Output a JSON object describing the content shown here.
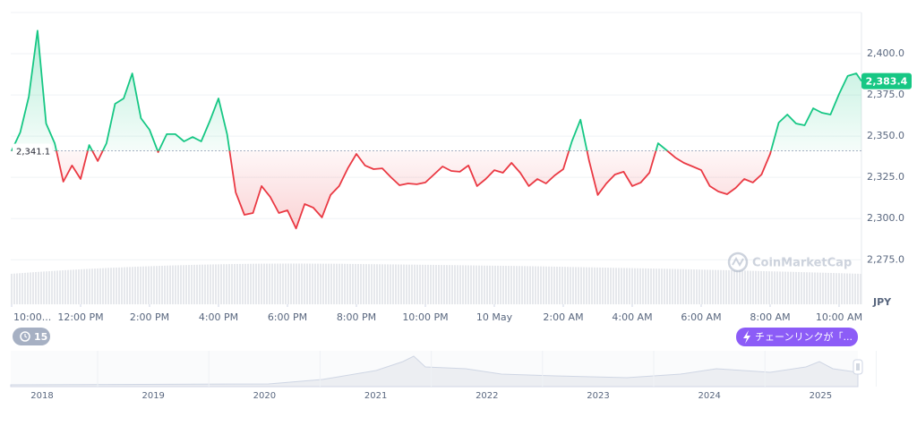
{
  "chart_data": {
    "type": "line",
    "x": [
      0,
      0.25,
      0.5,
      0.75,
      1,
      1.25,
      1.5,
      1.75,
      2,
      2.25,
      2.5,
      2.75,
      3,
      3.25,
      3.5,
      3.75,
      4,
      4.25,
      4.5,
      4.75,
      5,
      5.25,
      5.5,
      5.75,
      6,
      6.25,
      6.5,
      6.75,
      7,
      7.25,
      7.5,
      7.75,
      8,
      8.25,
      8.5,
      8.75,
      9,
      9.25,
      9.5,
      9.75,
      10,
      10.25,
      10.5,
      10.75,
      11,
      11.25,
      11.5,
      11.75,
      12,
      12.25,
      12.5,
      12.75,
      13,
      13.25,
      13.5,
      13.75,
      14,
      14.25,
      14.5,
      14.75,
      15,
      15.25,
      15.5,
      15.75,
      16,
      16.25,
      16.5,
      16.75,
      17,
      17.25,
      17.5,
      17.75,
      18,
      18.25,
      18.5,
      18.75,
      19,
      19.25,
      19.5,
      19.75,
      20,
      20.25,
      20.5,
      20.75,
      21,
      21.25,
      21.5,
      21.75,
      22,
      22.25,
      22.5,
      22.75,
      23,
      23.25,
      23.5,
      23.75,
      24,
      24.25,
      24.5,
      24.65
    ],
    "values": [
      2341.1,
      2352.3,
      2374.0,
      2414.0,
      2357.7,
      2345.7,
      2322.4,
      2332.2,
      2324.0,
      2344.6,
      2334.9,
      2345.7,
      2369.6,
      2372.9,
      2388.0,
      2360.9,
      2353.9,
      2340.3,
      2351.2,
      2351.2,
      2346.8,
      2349.5,
      2346.8,
      2359.3,
      2372.9,
      2351.2,
      2315.9,
      2302.3,
      2303.4,
      2319.7,
      2313.2,
      2303.4,
      2305.0,
      2294.0,
      2308.8,
      2306.6,
      2300.7,
      2314.3,
      2319.7,
      2330.5,
      2339.2,
      2332.2,
      2330.0,
      2330.5,
      2325.1,
      2320.2,
      2321.3,
      2320.8,
      2321.9,
      2326.7,
      2331.6,
      2328.9,
      2328.4,
      2332.2,
      2319.7,
      2324.0,
      2329.4,
      2327.8,
      2333.8,
      2327.8,
      2319.7,
      2324.0,
      2321.3,
      2326.2,
      2330.0,
      2346.8,
      2360.0,
      2334.9,
      2314.3,
      2321.3,
      2326.7,
      2328.4,
      2319.7,
      2321.9,
      2327.8,
      2345.7,
      2341.4,
      2337.0,
      2333.8,
      2331.6,
      2329.4,
      2319.7,
      2316.4,
      2314.8,
      2318.6,
      2324.0,
      2321.9,
      2326.7,
      2339.2,
      2358.2,
      2363.1,
      2357.7,
      2356.6,
      2366.9,
      2364.2,
      2363.1,
      2375.6,
      2386.5,
      2388.1,
      2383.4
    ],
    "xlim": [
      0,
      24.65
    ],
    "xticks": [
      {
        "value": 0,
        "label": "10:00..."
      },
      {
        "value": 2,
        "label": "12:00 PM"
      },
      {
        "value": 4,
        "label": "2:00 PM"
      },
      {
        "value": 6,
        "label": "4:00 PM"
      },
      {
        "value": 8,
        "label": "6:00 PM"
      },
      {
        "value": 10,
        "label": "8:00 PM"
      },
      {
        "value": 12,
        "label": "10:00 PM"
      },
      {
        "value": 14,
        "label": "10 May"
      },
      {
        "value": 16,
        "label": "2:00 AM"
      },
      {
        "value": 18,
        "label": "4:00 AM"
      },
      {
        "value": 20,
        "label": "6:00 AM"
      },
      {
        "value": 22,
        "label": "8:00 AM"
      },
      {
        "value": 24,
        "label": "10:00 AM"
      }
    ],
    "ylim": [
      2248,
      2425
    ],
    "yticks": [
      {
        "value": 2275,
        "label": "2,275.0"
      },
      {
        "value": 2300,
        "label": "2,300.0"
      },
      {
        "value": 2325,
        "label": "2,325.0"
      },
      {
        "value": 2350,
        "label": "2,350.0"
      },
      {
        "value": 2375,
        "label": "2,375.0"
      },
      {
        "value": 2400,
        "label": "2,400.0"
      }
    ],
    "grid": true,
    "baseline": {
      "value": 2341.1,
      "label": "2,341.1"
    },
    "price_tag": {
      "value": 2383.4,
      "label": "2,383.4"
    },
    "unit": "JPY",
    "up_color": "#16c784",
    "down_color": "#ea3943"
  },
  "watermark": "CoinMarketCap",
  "history_badge": "15",
  "news_badge": "チェーンリンクが「...",
  "navigator": {
    "years": [
      "2018",
      "2019",
      "2020",
      "2021",
      "2022",
      "2023",
      "2024",
      "2025"
    ]
  }
}
